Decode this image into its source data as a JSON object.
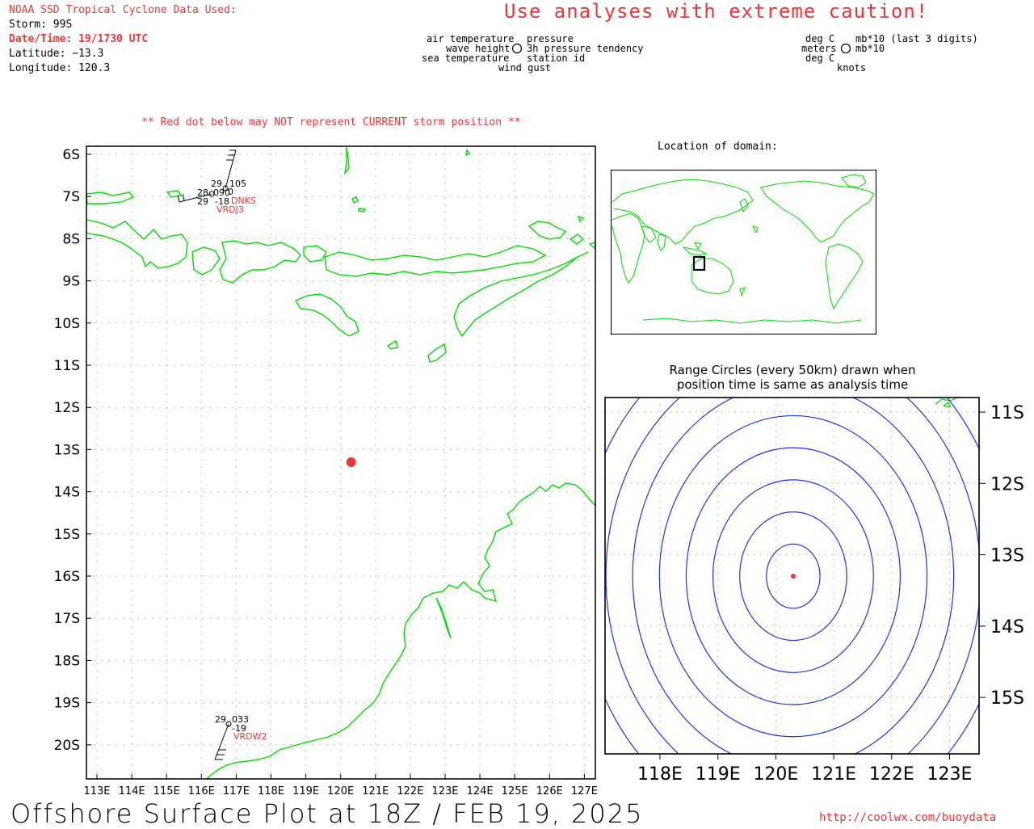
{
  "header": {
    "source_title": "NOAA SSD Tropical Cyclone Data Used:",
    "storm": "Storm: 99S",
    "datetime": "Date/Time: 19/1730 UTC",
    "latitude": "Latitude: −13.3",
    "longitude": "Longitude: 120.3",
    "warning": "Use analyses with extreme caution!"
  },
  "legend": {
    "left": {
      "air_temperature": "air temperature",
      "wave_height": "wave height",
      "sea_temperature": "sea temperature",
      "pressure": "pressure",
      "pressure_tendency": "3h pressure tendency",
      "station_id": "station id",
      "wind_gust": "wind gust"
    },
    "right": {
      "deg_c_1": "deg C",
      "meters": "meters",
      "deg_c_2": "deg C",
      "mb_last3": "mb*10 (last 3 digits)",
      "mb10": "mb*10",
      "knots": "knots"
    }
  },
  "main_map": {
    "notice": "** Red dot below may NOT represent CURRENT storm position **",
    "lat_labels": [
      "6S",
      "7S",
      "8S",
      "9S",
      "10S",
      "11S",
      "12S",
      "13S",
      "14S",
      "15S",
      "16S",
      "17S",
      "18S",
      "19S",
      "20S"
    ],
    "lon_labels": [
      "113E",
      "114E",
      "115E",
      "116E",
      "117E",
      "118E",
      "119E",
      "120E",
      "121E",
      "122E",
      "123E",
      "124E",
      "125E",
      "126E",
      "127E"
    ],
    "storm_position": {
      "lat": -13.3,
      "lon": 120.3
    },
    "stations": [
      {
        "id": "DNKS",
        "temp": "29",
        "pressure": "105",
        "tendency": "0"
      },
      {
        "id": "VRDJ3",
        "temp": "28",
        "pressure": "090",
        "tendency": "-18",
        "sea_temp": "29"
      },
      {
        "id": "VRDW2",
        "temp": "29",
        "pressure": "033",
        "tendency": "-19"
      }
    ]
  },
  "inset_map": {
    "title": "Location of domain:"
  },
  "range_map": {
    "title_line1": "Range Circles (every 50km) drawn when",
    "title_line2": "position time is same as analysis time",
    "lat_labels": [
      "11S",
      "12S",
      "13S",
      "14S",
      "15S"
    ],
    "lon_labels": [
      "118E",
      "119E",
      "120E",
      "121E",
      "122E",
      "123E"
    ],
    "circle_count": 8
  },
  "footer": {
    "title": "Offshore Surface Plot at 18Z / FEB 19, 2025",
    "url": "http://coolwx.com/buoydata"
  },
  "colors": {
    "coast": "#00dd00",
    "storm": "#e8383a",
    "range_circle": "#2233dd",
    "grid": "#bbbbbb"
  }
}
